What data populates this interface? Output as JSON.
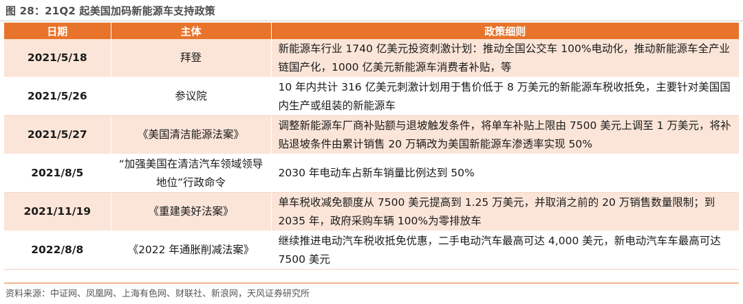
{
  "figure": {
    "title": "图 28：21Q2 起美国加码新能源车支持政策",
    "source": "资料来源：中证网、凤凰网、上海有色网、财联社、新浪网，天风证券研究所"
  },
  "table": {
    "headers": {
      "date": "日期",
      "subject": "主体",
      "policy": "政策细则"
    },
    "rows": [
      {
        "date": "2021/5/18",
        "subject": "拜登",
        "policy": "新能源车行业 1740 亿美元投资刺激计划：推动全国公交车 100%电动化，推动新能源车全产业链国产化，1000 亿美元新能源车消费者补贴，等"
      },
      {
        "date": "2021/5/26",
        "subject": "参议院",
        "policy": "10 年内共计 316 亿美元刺激计划用于售价低于 8 万美元的新能源车税收抵免，主要针对美国国内生产或组装的新能源车"
      },
      {
        "date": "2021/5/27",
        "subject": "《美国清洁能源法案》",
        "policy": "调整新能源车厂商补贴额与退坡触发条件，将单车补贴上限由 7500 美元上调至 1 万美元，将补贴退坡条件由累计销售 20 万辆改为美国新能源车渗透率实现 50%"
      },
      {
        "date": "2021/8/5",
        "subject": "“加强美国在清洁汽车领域领导地位”行政命令",
        "policy": "2030 年电动车占新车销量比例达到 50%"
      },
      {
        "date": "2021/11/19",
        "subject": "《重建美好法案》",
        "policy": "单车税收减免额度从 7500 美元提高到 1.25 万美元，并取消之前的 20 万销售数量限制；到 2035 年，政府采购车辆 100%为零排放车"
      },
      {
        "date": "2022/8/8",
        "subject": "《2022 年通胀削减法案》",
        "policy": "继续推进电动汽车税收抵免优惠，二手电动汽车最高可达 4,000 美元，新电动汽车车最高可达 7500 美元"
      }
    ]
  },
  "colors": {
    "header_bg": "#e8742c",
    "row_shaded_bg": "#fbe5d8"
  }
}
